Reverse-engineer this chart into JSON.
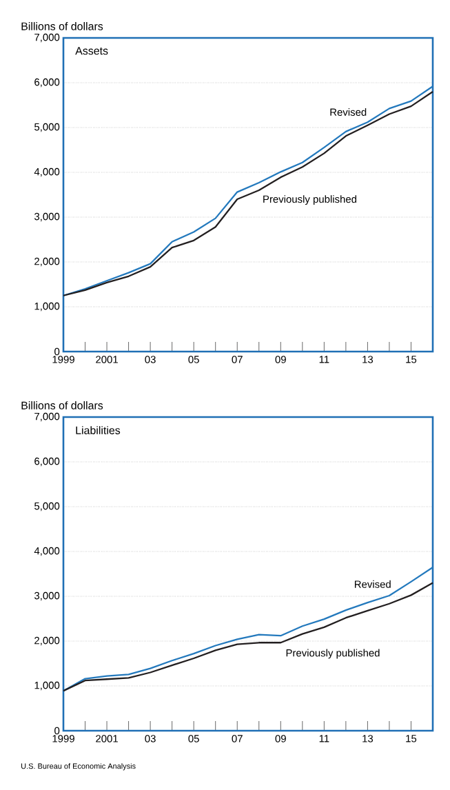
{
  "chart_data": [
    {
      "type": "line",
      "title": "Assets",
      "ylabel": "Billions of dollars",
      "x": [
        1999,
        2000,
        2001,
        2002,
        2003,
        2004,
        2005,
        2006,
        2007,
        2008,
        2009,
        2010,
        2011,
        2012,
        2013,
        2014,
        2015,
        2016
      ],
      "series": [
        {
          "name": "Revised",
          "color": "#2379bd",
          "values": [
            1250,
            1400,
            1580,
            1760,
            1960,
            2450,
            2670,
            2975,
            3560,
            3770,
            4010,
            4220,
            4555,
            4910,
            5120,
            5425,
            5590,
            5920
          ]
        },
        {
          "name": "Previously published",
          "color": "#231f20",
          "values": [
            1250,
            1370,
            1540,
            1680,
            1890,
            2320,
            2480,
            2780,
            3400,
            3600,
            3890,
            4120,
            4425,
            4810,
            5050,
            5300,
            5475,
            5800
          ]
        }
      ],
      "xlim": [
        1999,
        2016
      ],
      "xticks": [
        {
          "value": 1999,
          "label": "1999"
        },
        {
          "value": 2000,
          "label": null
        },
        {
          "value": 2001,
          "label": "2001"
        },
        {
          "value": 2002,
          "label": null
        },
        {
          "value": 2003,
          "label": "03"
        },
        {
          "value": 2004,
          "label": null
        },
        {
          "value": 2005,
          "label": "05"
        },
        {
          "value": 2006,
          "label": null
        },
        {
          "value": 2007,
          "label": "07"
        },
        {
          "value": 2008,
          "label": null
        },
        {
          "value": 2009,
          "label": "09"
        },
        {
          "value": 2010,
          "label": null
        },
        {
          "value": 2011,
          "label": "11"
        },
        {
          "value": 2012,
          "label": null
        },
        {
          "value": 2013,
          "label": "13"
        },
        {
          "value": 2014,
          "label": null
        },
        {
          "value": 2015,
          "label": "15"
        },
        {
          "value": 2016,
          "label": null
        }
      ],
      "ylim": [
        0,
        7000
      ],
      "yticks": [
        0,
        {
          "value": 1000,
          "label": "1,000"
        },
        {
          "value": 2000,
          "label": "2,000"
        },
        {
          "value": 3000,
          "label": "3,000"
        },
        {
          "value": 4000,
          "label": "4,000"
        },
        {
          "value": 5000,
          "label": "5,000"
        },
        {
          "value": 6000,
          "label": "6,000"
        },
        {
          "value": 7000,
          "label": "7,000"
        }
      ],
      "grid": "y",
      "legend": false,
      "marker": "none",
      "line_style": "solid"
    },
    {
      "type": "line",
      "title": "Liabilities",
      "ylabel": "Billions of dollars",
      "x": [
        1999,
        2000,
        2001,
        2002,
        2003,
        2004,
        2005,
        2006,
        2007,
        2008,
        2009,
        2010,
        2011,
        2012,
        2013,
        2014,
        2015,
        2016
      ],
      "series": [
        {
          "name": "Revised",
          "color": "#2379bd",
          "values": [
            890,
            1160,
            1220,
            1255,
            1390,
            1565,
            1720,
            1900,
            2040,
            2145,
            2120,
            2335,
            2490,
            2690,
            2860,
            3015,
            3325,
            3645
          ]
        },
        {
          "name": "Previously published",
          "color": "#231f20",
          "values": [
            890,
            1120,
            1150,
            1180,
            1300,
            1460,
            1615,
            1795,
            1930,
            1965,
            1965,
            2160,
            2310,
            2520,
            2680,
            2835,
            3025,
            3300
          ]
        }
      ],
      "xlim": [
        1999,
        2016
      ],
      "xticks": [
        {
          "value": 1999,
          "label": "1999"
        },
        {
          "value": 2000,
          "label": null
        },
        {
          "value": 2001,
          "label": "2001"
        },
        {
          "value": 2002,
          "label": null
        },
        {
          "value": 2003,
          "label": "03"
        },
        {
          "value": 2004,
          "label": null
        },
        {
          "value": 2005,
          "label": "05"
        },
        {
          "value": 2006,
          "label": null
        },
        {
          "value": 2007,
          "label": "07"
        },
        {
          "value": 2008,
          "label": null
        },
        {
          "value": 2009,
          "label": "09"
        },
        {
          "value": 2010,
          "label": null
        },
        {
          "value": 2011,
          "label": "11"
        },
        {
          "value": 2012,
          "label": null
        },
        {
          "value": 2013,
          "label": "13"
        },
        {
          "value": 2014,
          "label": null
        },
        {
          "value": 2015,
          "label": "15"
        },
        {
          "value": 2016,
          "label": null
        }
      ],
      "ylim": [
        0,
        7000
      ],
      "yticks": [
        0,
        {
          "value": 1000,
          "label": "1,000"
        },
        {
          "value": 2000,
          "label": "2,000"
        },
        {
          "value": 3000,
          "label": "3,000"
        },
        {
          "value": 4000,
          "label": "4,000"
        },
        {
          "value": 5000,
          "label": "5,000"
        },
        {
          "value": 6000,
          "label": "6,000"
        },
        {
          "value": 7000,
          "label": "7,000"
        }
      ],
      "grid": "y",
      "legend": false,
      "marker": "none",
      "line_style": "solid",
      "annotations": [
        "U.S. Bureau of Economic Analysis"
      ]
    }
  ]
}
